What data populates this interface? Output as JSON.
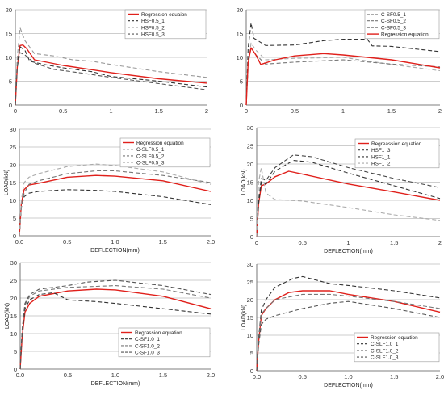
{
  "chart_data": [
    {
      "type": "line",
      "xlabel": "",
      "ylabel": "",
      "xlim": [
        0,
        2
      ],
      "ylim": [
        0,
        20
      ],
      "xticks": [
        "0",
        "0.5",
        "1",
        "1.5",
        "2"
      ],
      "yticks": [
        "0",
        "5",
        "10",
        "15",
        "20"
      ],
      "grid": "horizontal",
      "legend_placement": "top-right",
      "series": [
        {
          "name": "Regression equaion",
          "color": "#e0201b",
          "dash": "solid",
          "x": [
            0,
            0.02,
            0.05,
            0.08,
            0.12,
            0.2,
            0.5,
            1.0,
            1.5,
            2.0
          ],
          "y": [
            0,
            8,
            12.5,
            12.6,
            11.8,
            9.5,
            8.3,
            6.8,
            5.5,
            4.6
          ]
        },
        {
          "name": "HSF0.5_1",
          "color": "#333333",
          "dash": "dash",
          "x": [
            0,
            0.02,
            0.05,
            0.1,
            0.15,
            0.3,
            0.5,
            0.8,
            1.0,
            1.5,
            2.0
          ],
          "y": [
            0,
            9,
            12.2,
            11.5,
            9.2,
            8.5,
            7.8,
            7.0,
            6.0,
            5.0,
            3.8
          ]
        },
        {
          "name": "HSF0.5_2",
          "color": "#999999",
          "dash": "dash",
          "x": [
            0,
            0.02,
            0.05,
            0.1,
            0.2,
            0.4,
            0.6,
            0.8,
            1.0,
            1.5,
            2.0
          ],
          "y": [
            0,
            10,
            16.2,
            13.5,
            10.8,
            10.3,
            9.5,
            9.2,
            8.5,
            7.0,
            5.8
          ]
        },
        {
          "name": "HSF0.5_3",
          "color": "#555555",
          "dash": "dash",
          "x": [
            0,
            0.02,
            0.05,
            0.1,
            0.2,
            0.4,
            0.7,
            1.0,
            1.5,
            2.0
          ],
          "y": [
            0,
            8,
            11,
            10.5,
            8.8,
            7.5,
            6.7,
            5.8,
            4.5,
            3.2
          ]
        }
      ]
    },
    {
      "type": "line",
      "xlabel": "",
      "ylabel": "",
      "xlim": [
        0,
        2
      ],
      "ylim": [
        0,
        20
      ],
      "xticks": [
        "0",
        "0.5",
        "1",
        "1.5",
        "2"
      ],
      "yticks": [
        "0",
        "5",
        "10",
        "15",
        "20"
      ],
      "grid": "horizontal",
      "legend_placement": "top-right",
      "series": [
        {
          "name": "C-SF0.5_1",
          "color": "#aaaaaa",
          "dash": "dash",
          "x": [
            0,
            0.02,
            0.05,
            0.1,
            0.2,
            0.5,
            1.0,
            1.5,
            2.0
          ],
          "y": [
            0,
            8,
            13,
            11.5,
            9.5,
            9.8,
            10,
            8.5,
            7.2
          ]
        },
        {
          "name": "C-SF0.5_2",
          "color": "#777777",
          "dash": "dash",
          "x": [
            0,
            0.02,
            0.05,
            0.1,
            0.2,
            0.5,
            1.0,
            1.5,
            2.0
          ],
          "y": [
            0,
            9,
            12,
            10.5,
            8.6,
            9.0,
            9.5,
            8.6,
            8.0
          ]
        },
        {
          "name": "C-SF0.5_3",
          "color": "#333333",
          "dash": "dash",
          "x": [
            0,
            0.02,
            0.05,
            0.08,
            0.12,
            0.2,
            0.5,
            0.8,
            1.0,
            1.25,
            1.3,
            1.5,
            2.0
          ],
          "y": [
            0,
            12,
            17.2,
            14,
            13.5,
            12.5,
            12.6,
            13.5,
            13.8,
            13.8,
            12.4,
            12.3,
            11.2
          ]
        },
        {
          "name": "Regression equation",
          "color": "#e0201b",
          "dash": "solid",
          "x": [
            0,
            0.02,
            0.05,
            0.1,
            0.15,
            0.3,
            0.5,
            0.8,
            1.0,
            1.5,
            2.0
          ],
          "y": [
            0,
            9,
            12,
            10.5,
            8.5,
            9.5,
            10.3,
            10.8,
            10.5,
            9.5,
            7.8
          ]
        }
      ]
    },
    {
      "type": "line",
      "xlabel": "DEFLECTION(mm)",
      "ylabel": "LOAD(kN)",
      "xlim": [
        0,
        2
      ],
      "ylim": [
        0,
        30
      ],
      "xticks": [
        "0.0",
        "0.5",
        "1.0",
        "1.5",
        "2.0"
      ],
      "yticks": [
        "0",
        "5",
        "10",
        "15",
        "20",
        "25",
        "30"
      ],
      "grid": "horizontal",
      "legend_placement": "top-right",
      "series": [
        {
          "name": "Regression equation",
          "color": "#e0201b",
          "dash": "solid",
          "x": [
            0,
            0.02,
            0.05,
            0.1,
            0.2,
            0.5,
            0.8,
            1.0,
            1.5,
            2.0
          ],
          "y": [
            0,
            9,
            13,
            14.3,
            14.8,
            16.5,
            17,
            16.8,
            15.5,
            12.5
          ]
        },
        {
          "name": "C-SLF0.5_1",
          "color": "#333333",
          "dash": "dash",
          "x": [
            0,
            0.02,
            0.05,
            0.1,
            0.2,
            0.5,
            0.8,
            1.0,
            1.5,
            2.0
          ],
          "y": [
            0,
            8,
            11,
            12,
            12.5,
            13,
            12.8,
            12.5,
            11,
            8.8
          ]
        },
        {
          "name": "C-SLF0.5_2",
          "color": "#777777",
          "dash": "dash",
          "x": [
            0,
            0.02,
            0.05,
            0.1,
            0.2,
            0.5,
            0.8,
            1.0,
            1.5,
            2.0
          ],
          "y": [
            0,
            8,
            12,
            14.5,
            15.5,
            17.5,
            18.3,
            18.3,
            17,
            15
          ]
        },
        {
          "name": "C-SLF0.5_3",
          "color": "#aaaaaa",
          "dash": "dash",
          "x": [
            0,
            0.02,
            0.05,
            0.1,
            0.2,
            0.5,
            0.8,
            1.0,
            1.5,
            2.0
          ],
          "y": [
            0,
            10,
            15,
            16.5,
            17.5,
            19.5,
            20.2,
            19.8,
            18,
            14.5
          ]
        }
      ]
    },
    {
      "type": "line",
      "xlabel": "DEFLECTION(mm)",
      "ylabel": "LOAD(kN)",
      "xlim": [
        0,
        2
      ],
      "ylim": [
        0,
        30
      ],
      "xticks": [
        "0",
        "0.5",
        "1",
        "1.5",
        "2"
      ],
      "yticks": [
        "0",
        "5",
        "10",
        "15",
        "20",
        "25",
        "30"
      ],
      "grid": "horizontal",
      "legend_placement": "top-right",
      "series": [
        {
          "name": "Regreassion equation",
          "color": "#e0201b",
          "dash": "solid",
          "x": [
            0,
            0.02,
            0.05,
            0.1,
            0.2,
            0.35,
            0.5,
            1.0,
            1.5,
            2.0
          ],
          "y": [
            0,
            9,
            14,
            14.5,
            16.5,
            18,
            17.2,
            14.5,
            12.3,
            10
          ]
        },
        {
          "name": "HSF1_3",
          "color": "#444444",
          "dash": "dash",
          "x": [
            0,
            0.02,
            0.05,
            0.1,
            0.2,
            0.4,
            0.6,
            1.0,
            1.5,
            2.0
          ],
          "y": [
            0,
            10,
            16,
            15.5,
            19,
            22.5,
            22,
            19,
            16,
            13.5
          ]
        },
        {
          "name": "HSF1_1",
          "color": "#333333",
          "dash": "dash",
          "x": [
            0,
            0.02,
            0.05,
            0.1,
            0.2,
            0.4,
            0.6,
            1.0,
            1.5,
            2.0
          ],
          "y": [
            0,
            9,
            15,
            14.5,
            18,
            21,
            20.5,
            17.5,
            14,
            10.5
          ]
        },
        {
          "name": "HSF1_2",
          "color": "#aaaaaa",
          "dash": "dash",
          "x": [
            0,
            0.02,
            0.05,
            0.1,
            0.2,
            0.5,
            1.0,
            1.5,
            2.0
          ],
          "y": [
            0,
            15,
            19,
            12,
            10.2,
            9.8,
            8,
            6,
            4.5
          ]
        }
      ]
    },
    {
      "type": "line",
      "xlabel": "DEFLECTION(mm)",
      "ylabel": "LOAD(kN)",
      "xlim": [
        0,
        2
      ],
      "ylim": [
        0,
        30
      ],
      "xticks": [
        "0.0",
        "0.5",
        "1.0",
        "1.5",
        "2.0"
      ],
      "yticks": [
        "0",
        "5",
        "10",
        "15",
        "20",
        "25",
        "30"
      ],
      "grid": "horizontal",
      "legend_placement": "bottom-left",
      "series": [
        {
          "name": "Regrassion equation",
          "color": "#e0201b",
          "dash": "solid",
          "x": [
            0,
            0.02,
            0.05,
            0.1,
            0.2,
            0.5,
            0.8,
            1.0,
            1.5,
            2.0
          ],
          "y": [
            0,
            9,
            16,
            18.5,
            20.5,
            22,
            22.5,
            22.3,
            20.5,
            17
          ]
        },
        {
          "name": "C-SF1.0_1",
          "color": "#333333",
          "dash": "dash",
          "x": [
            0,
            0.02,
            0.05,
            0.1,
            0.2,
            0.35,
            0.5,
            0.8,
            1.0,
            1.5,
            2.0
          ],
          "y": [
            0,
            10,
            17,
            19.5,
            21,
            21.5,
            19.5,
            19,
            18.5,
            17,
            15.5
          ]
        },
        {
          "name": "C-SF1.0_2",
          "color": "#777777",
          "dash": "dash",
          "x": [
            0,
            0.02,
            0.05,
            0.1,
            0.2,
            0.5,
            0.8,
            1.0,
            1.5,
            2.0
          ],
          "y": [
            0,
            11,
            18,
            20.5,
            22,
            23,
            23.3,
            23.5,
            22.5,
            20
          ]
        },
        {
          "name": "C-SF1.0_3",
          "color": "#555555",
          "dash": "dash",
          "x": [
            0,
            0.02,
            0.05,
            0.1,
            0.2,
            0.5,
            0.7,
            1.0,
            1.5,
            2.0
          ],
          "y": [
            0,
            11,
            18.5,
            21,
            22.5,
            23.5,
            24.5,
            25,
            23.5,
            21
          ]
        }
      ]
    },
    {
      "type": "line",
      "xlabel": "DEFLECTION(mm)",
      "ylabel": "LOAD(kN)",
      "xlim": [
        0,
        2
      ],
      "ylim": [
        0,
        30
      ],
      "xticks": [
        "0.0",
        "0.5",
        "1.0",
        "1.5",
        "2.0"
      ],
      "yticks": [
        "0",
        "5",
        "10",
        "15",
        "20",
        "25",
        "30"
      ],
      "grid": "horizontal",
      "legend_placement": "bottom-left",
      "series": [
        {
          "name": "Regression equation",
          "color": "#e0201b",
          "dash": "solid",
          "x": [
            0,
            0.02,
            0.05,
            0.1,
            0.2,
            0.35,
            0.5,
            0.8,
            1.0,
            1.5,
            2.0
          ],
          "y": [
            0,
            8,
            15.5,
            17.5,
            20,
            22,
            22.5,
            22.5,
            21.5,
            19.5,
            16.5
          ]
        },
        {
          "name": "C-SLF1.0_1",
          "color": "#333333",
          "dash": "dash",
          "x": [
            0,
            0.02,
            0.05,
            0.1,
            0.2,
            0.4,
            0.5,
            0.8,
            1.0,
            1.5,
            2.0
          ],
          "y": [
            0,
            9,
            17,
            20,
            23.5,
            26,
            26.5,
            24.5,
            24,
            22.5,
            20.5
          ]
        },
        {
          "name": "C-SLF1.0_2",
          "color": "#777777",
          "dash": "dash",
          "x": [
            0,
            0.02,
            0.05,
            0.1,
            0.2,
            0.5,
            0.8,
            1.0,
            1.5,
            2.0
          ],
          "y": [
            0,
            8,
            16,
            17.5,
            20,
            21.5,
            21.5,
            21,
            19.5,
            17.5
          ]
        },
        {
          "name": "C-SLF1.0_3",
          "color": "#555555",
          "dash": "dash",
          "x": [
            0,
            0.02,
            0.05,
            0.1,
            0.2,
            0.5,
            0.8,
            1.0,
            1.5,
            2.0
          ],
          "y": [
            0,
            7,
            13,
            14.5,
            15.5,
            17.5,
            19,
            19.5,
            17.5,
            15
          ]
        }
      ]
    }
  ]
}
